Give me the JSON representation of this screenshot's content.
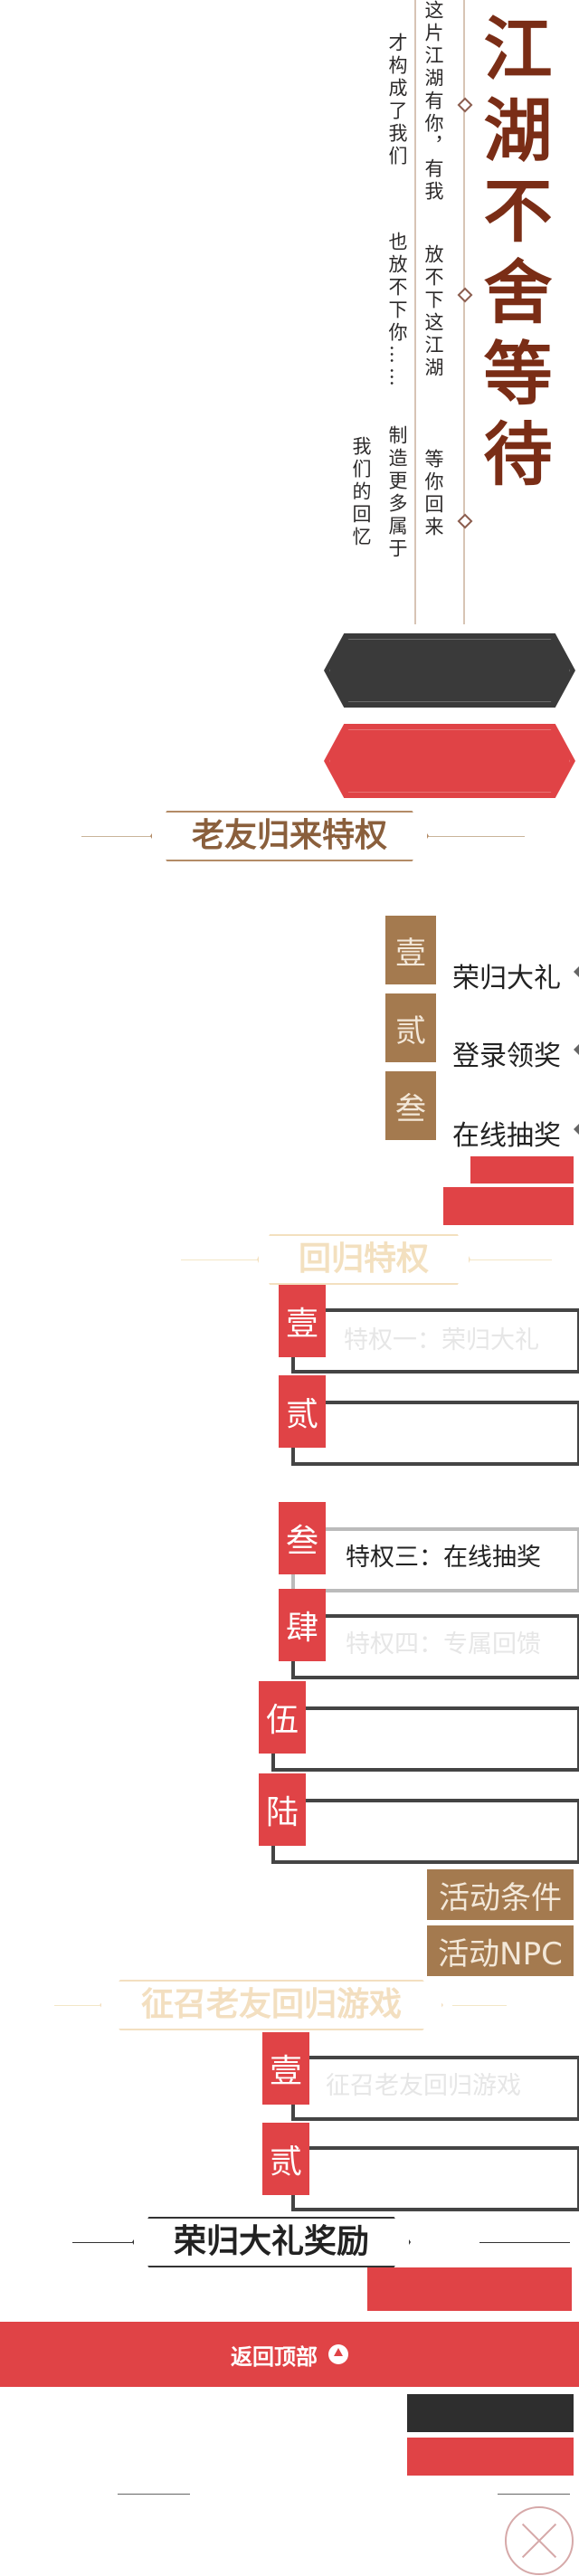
{
  "hero": {
    "title_chars": [
      "江",
      "湖",
      "不",
      "舍",
      "等",
      "待"
    ],
    "poem": {
      "col1": "这片江湖有你，有我",
      "col2": "才构成了我们",
      "col3": "放不下这江湖",
      "col4": "也放不下你……",
      "col5": "等你回来",
      "col6": "制造更多属于",
      "col7": "我们的回忆"
    }
  },
  "section1": {
    "title": "老友归来特权",
    "items": [
      {
        "num": "壹",
        "label": "荣归大礼"
      },
      {
        "num": "贰",
        "label": "登录领奖"
      },
      {
        "num": "叁",
        "label": "在线抽奖"
      }
    ]
  },
  "section2": {
    "title": "回归特权",
    "rows": [
      {
        "num": "壹",
        "text": "特权一：荣归大礼"
      },
      {
        "num": "贰",
        "text": ""
      },
      {
        "num": "叁",
        "text": "特权三：在线抽奖"
      },
      {
        "num": "肆",
        "text": "特权四：专属回馈"
      },
      {
        "num": "伍",
        "text": ""
      },
      {
        "num": "陆",
        "text": ""
      }
    ],
    "conditions": "活动条件",
    "npc": "活动NPC"
  },
  "section3": {
    "title": "征召老友回归游戏",
    "rows": [
      {
        "num": "壹",
        "text": "征召老友回归游戏"
      },
      {
        "num": "贰",
        "text": ""
      }
    ]
  },
  "section4": {
    "title": "荣归大礼奖励"
  },
  "footer": {
    "back_top": "返回顶部"
  },
  "colors": {
    "red": "#e04346",
    "tan": "#a47a4f",
    "dark": "#3a3a3a",
    "title_brown": "#7a2d16"
  }
}
